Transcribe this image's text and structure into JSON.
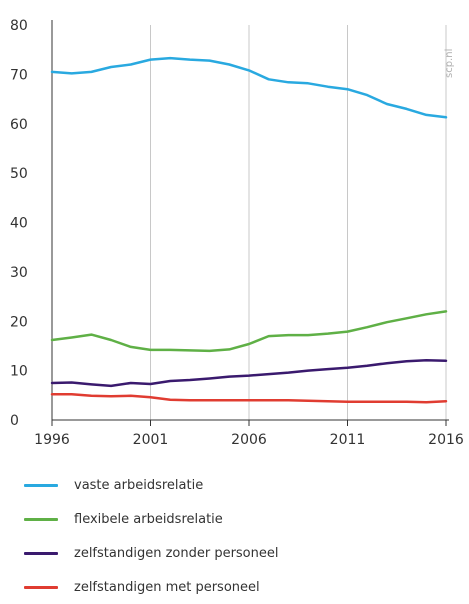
{
  "chart_data": {
    "type": "line",
    "x": [
      1996,
      1997,
      1998,
      1999,
      2000,
      2001,
      2002,
      2003,
      2004,
      2005,
      2006,
      2007,
      2008,
      2009,
      2010,
      2011,
      2012,
      2013,
      2014,
      2015,
      2016
    ],
    "xticks": [
      1996,
      2001,
      2006,
      2011,
      2016
    ],
    "yticks": [
      0,
      10,
      20,
      30,
      40,
      50,
      60,
      70,
      80
    ],
    "ylim": [
      0,
      80
    ],
    "xlim": [
      1996,
      2016
    ],
    "grid": "vertical",
    "legend_position": "bottom",
    "watermark": "scp.nl",
    "series": [
      {
        "name": "vaste arbeidsrelatie",
        "color": "#29a9e0",
        "values": [
          70.5,
          70.2,
          70.5,
          71.5,
          72.0,
          73.0,
          73.3,
          73.0,
          72.8,
          72.0,
          70.8,
          69.0,
          68.4,
          68.2,
          67.5,
          67.0,
          65.8,
          64.0,
          63.0,
          61.8,
          61.3
        ]
      },
      {
        "name": "flexibele arbeidsrelatie",
        "color": "#5fb046",
        "values": [
          16.2,
          16.7,
          17.3,
          16.2,
          14.8,
          14.2,
          14.2,
          14.1,
          14.0,
          14.3,
          15.4,
          17.0,
          17.2,
          17.2,
          17.5,
          17.9,
          18.8,
          19.8,
          20.6,
          21.4,
          22.0
        ]
      },
      {
        "name": "zelfstandigen zonder personeel",
        "color": "#3a1a6e",
        "values": [
          7.5,
          7.6,
          7.2,
          6.9,
          7.5,
          7.3,
          7.9,
          8.1,
          8.4,
          8.8,
          9.0,
          9.3,
          9.6,
          10.0,
          10.3,
          10.6,
          11.0,
          11.5,
          11.9,
          12.1,
          12.0
        ]
      },
      {
        "name": "zelfstandigen met personeel",
        "color": "#e03c31",
        "values": [
          5.2,
          5.2,
          4.9,
          4.8,
          4.9,
          4.6,
          4.1,
          4.0,
          4.0,
          4.0,
          4.0,
          4.0,
          4.0,
          3.9,
          3.8,
          3.7,
          3.7,
          3.7,
          3.7,
          3.6,
          3.8
        ]
      }
    ]
  }
}
